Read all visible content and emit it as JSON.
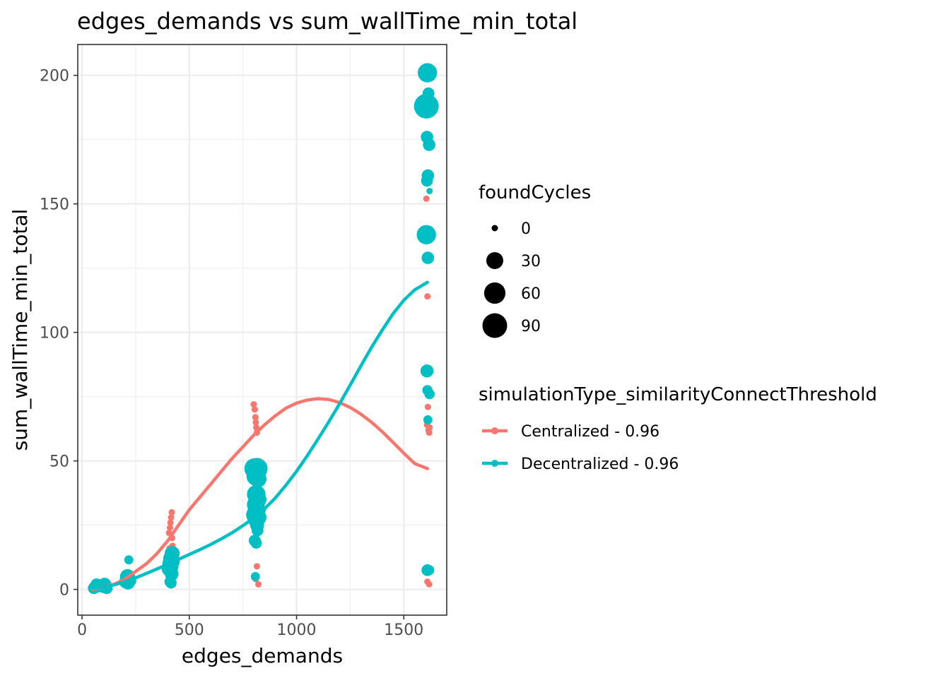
{
  "chart_data": {
    "type": "scatter",
    "title": "edges_demands  vs  sum_wallTime_min_total",
    "xlabel": "edges_demands",
    "ylabel": "sum_wallTime_min_total",
    "xlim": [
      -20,
      1700
    ],
    "ylim": [
      -10,
      212
    ],
    "xticks": [
      0,
      500,
      1000,
      1500
    ],
    "yticks": [
      0,
      50,
      100,
      150,
      200
    ],
    "grid": true,
    "size_legend": {
      "title": "foundCycles",
      "entries": [
        {
          "label": "0",
          "value": 0
        },
        {
          "label": "30",
          "value": 30
        },
        {
          "label": "60",
          "value": 60
        },
        {
          "label": "90",
          "value": 90
        }
      ]
    },
    "color_legend": {
      "title": "simulationType_similarityConnectThreshold",
      "position": "right"
    },
    "series": [
      {
        "name": "Centralized - 0.96",
        "color": "#F8766D",
        "points": [
          {
            "x": 55,
            "y": 0.5,
            "c": 0
          },
          {
            "x": 60,
            "y": 1,
            "c": 0
          },
          {
            "x": 70,
            "y": 1.5,
            "c": 0
          },
          {
            "x": 105,
            "y": 1,
            "c": 0
          },
          {
            "x": 110,
            "y": 1.5,
            "c": 0
          },
          {
            "x": 205,
            "y": 3,
            "c": 0
          },
          {
            "x": 210,
            "y": 4,
            "c": 0
          },
          {
            "x": 215,
            "y": 5,
            "c": 0
          },
          {
            "x": 220,
            "y": 6,
            "c": 0
          },
          {
            "x": 405,
            "y": 22,
            "c": 0
          },
          {
            "x": 410,
            "y": 24,
            "c": 0
          },
          {
            "x": 412,
            "y": 26,
            "c": 0
          },
          {
            "x": 415,
            "y": 28,
            "c": 0
          },
          {
            "x": 418,
            "y": 30,
            "c": 0
          },
          {
            "x": 420,
            "y": 20,
            "c": 0
          },
          {
            "x": 422,
            "y": 17,
            "c": 0
          },
          {
            "x": 425,
            "y": 15,
            "c": 0
          },
          {
            "x": 408,
            "y": 16,
            "c": 0
          },
          {
            "x": 416,
            "y": 13,
            "c": 0
          },
          {
            "x": 414,
            "y": 11,
            "c": 0
          },
          {
            "x": 800,
            "y": 72,
            "c": 0
          },
          {
            "x": 805,
            "y": 70,
            "c": 0
          },
          {
            "x": 810,
            "y": 65,
            "c": 0
          },
          {
            "x": 812,
            "y": 63,
            "c": 0
          },
          {
            "x": 815,
            "y": 61,
            "c": 0
          },
          {
            "x": 808,
            "y": 67,
            "c": 0
          },
          {
            "x": 815,
            "y": 9,
            "c": 0
          },
          {
            "x": 810,
            "y": 4,
            "c": 0
          },
          {
            "x": 822,
            "y": 2,
            "c": 0
          },
          {
            "x": 1605,
            "y": 152,
            "c": 0
          },
          {
            "x": 1610,
            "y": 114,
            "c": 0
          },
          {
            "x": 1612,
            "y": 71,
            "c": 0
          },
          {
            "x": 1608,
            "y": 64,
            "c": 0
          },
          {
            "x": 1615,
            "y": 62,
            "c": 0
          },
          {
            "x": 1618,
            "y": 61,
            "c": 0
          },
          {
            "x": 1620,
            "y": 63,
            "c": 0
          },
          {
            "x": 1610,
            "y": 3,
            "c": 0
          },
          {
            "x": 1618,
            "y": 2,
            "c": 0
          }
        ],
        "smooth": [
          [
            50,
            0
          ],
          [
            100,
            1
          ],
          [
            150,
            2
          ],
          [
            200,
            4
          ],
          [
            250,
            7
          ],
          [
            300,
            10
          ],
          [
            350,
            14
          ],
          [
            400,
            19
          ],
          [
            450,
            25
          ],
          [
            500,
            31
          ],
          [
            550,
            36
          ],
          [
            600,
            41
          ],
          [
            650,
            46
          ],
          [
            700,
            51
          ],
          [
            750,
            55.5
          ],
          [
            800,
            60
          ],
          [
            850,
            64
          ],
          [
            900,
            67.5
          ],
          [
            950,
            70.5
          ],
          [
            1000,
            72.5
          ],
          [
            1050,
            73.7
          ],
          [
            1100,
            74.2
          ],
          [
            1150,
            73.9
          ],
          [
            1200,
            72.7
          ],
          [
            1250,
            70.8
          ],
          [
            1300,
            68.2
          ],
          [
            1350,
            65
          ],
          [
            1400,
            61.3
          ],
          [
            1450,
            57.2
          ],
          [
            1500,
            53
          ],
          [
            1550,
            49
          ],
          [
            1610,
            47
          ]
        ]
      },
      {
        "name": "Decentralized - 0.96",
        "color": "#00BFC4",
        "points": [
          {
            "x": 55,
            "y": 0.5,
            "c": 8
          },
          {
            "x": 62,
            "y": 1,
            "c": 10
          },
          {
            "x": 68,
            "y": 2,
            "c": 8
          },
          {
            "x": 72,
            "y": 1,
            "c": 6
          },
          {
            "x": 100,
            "y": 1,
            "c": 10
          },
          {
            "x": 105,
            "y": 2,
            "c": 12
          },
          {
            "x": 110,
            "y": 1,
            "c": 14
          },
          {
            "x": 115,
            "y": 0.5,
            "c": 8
          },
          {
            "x": 205,
            "y": 3,
            "c": 14
          },
          {
            "x": 210,
            "y": 4,
            "c": 18
          },
          {
            "x": 215,
            "y": 2.5,
            "c": 12
          },
          {
            "x": 220,
            "y": 3.5,
            "c": 16
          },
          {
            "x": 218,
            "y": 11.5,
            "c": 2
          },
          {
            "x": 212,
            "y": 5,
            "c": 20
          },
          {
            "x": 405,
            "y": 8,
            "c": 18
          },
          {
            "x": 410,
            "y": 10,
            "c": 22
          },
          {
            "x": 415,
            "y": 12,
            "c": 24
          },
          {
            "x": 420,
            "y": 14,
            "c": 20
          },
          {
            "x": 412,
            "y": 9,
            "c": 26
          },
          {
            "x": 418,
            "y": 6,
            "c": 14
          },
          {
            "x": 410,
            "y": 3,
            "c": 6
          },
          {
            "x": 415,
            "y": 2.5,
            "c": 6
          },
          {
            "x": 422,
            "y": 11,
            "c": 18
          },
          {
            "x": 805,
            "y": 47,
            "c": 55
          },
          {
            "x": 815,
            "y": 47,
            "c": 60
          },
          {
            "x": 810,
            "y": 44,
            "c": 40
          },
          {
            "x": 820,
            "y": 43,
            "c": 30
          },
          {
            "x": 812,
            "y": 37,
            "c": 40
          },
          {
            "x": 818,
            "y": 35,
            "c": 35
          },
          {
            "x": 808,
            "y": 33,
            "c": 30
          },
          {
            "x": 815,
            "y": 31,
            "c": 35
          },
          {
            "x": 810,
            "y": 29,
            "c": 45
          },
          {
            "x": 820,
            "y": 28,
            "c": 30
          },
          {
            "x": 812,
            "y": 27,
            "c": 25
          },
          {
            "x": 816,
            "y": 25,
            "c": 15
          },
          {
            "x": 818,
            "y": 23,
            "c": 8
          },
          {
            "x": 805,
            "y": 19,
            "c": 8
          },
          {
            "x": 812,
            "y": 18,
            "c": 6
          },
          {
            "x": 808,
            "y": 5,
            "c": 2
          },
          {
            "x": 1610,
            "y": 201,
            "c": 45
          },
          {
            "x": 1615,
            "y": 193,
            "c": 8
          },
          {
            "x": 1605,
            "y": 188,
            "c": 90
          },
          {
            "x": 1608,
            "y": 176,
            "c": 10
          },
          {
            "x": 1618,
            "y": 173,
            "c": 10
          },
          {
            "x": 1612,
            "y": 161,
            "c": 10
          },
          {
            "x": 1608,
            "y": 159,
            "c": 8
          },
          {
            "x": 1620,
            "y": 155,
            "c": 0
          },
          {
            "x": 1605,
            "y": 138,
            "c": 45
          },
          {
            "x": 1612,
            "y": 129,
            "c": 10
          },
          {
            "x": 1608,
            "y": 85,
            "c": 12
          },
          {
            "x": 1610,
            "y": 77.5,
            "c": 4
          },
          {
            "x": 1620,
            "y": 76,
            "c": 4
          },
          {
            "x": 1612,
            "y": 66,
            "c": 2
          },
          {
            "x": 1610,
            "y": 7.5,
            "c": 8
          },
          {
            "x": 1618,
            "y": 7.5,
            "c": 4
          }
        ],
        "smooth": [
          [
            50,
            0.5
          ],
          [
            100,
            1
          ],
          [
            150,
            1.8
          ],
          [
            200,
            3
          ],
          [
            250,
            4.5
          ],
          [
            300,
            6.2
          ],
          [
            350,
            8
          ],
          [
            400,
            9.8
          ],
          [
            450,
            11.7
          ],
          [
            500,
            13.6
          ],
          [
            550,
            15.5
          ],
          [
            600,
            17.5
          ],
          [
            650,
            19.7
          ],
          [
            700,
            22.1
          ],
          [
            750,
            24.8
          ],
          [
            800,
            27.8
          ],
          [
            850,
            31.3
          ],
          [
            900,
            35.5
          ],
          [
            950,
            40.5
          ],
          [
            1000,
            46
          ],
          [
            1050,
            52
          ],
          [
            1100,
            58.5
          ],
          [
            1150,
            65.2
          ],
          [
            1200,
            72.2
          ],
          [
            1250,
            79.5
          ],
          [
            1300,
            87
          ],
          [
            1350,
            94.3
          ],
          [
            1400,
            101
          ],
          [
            1450,
            107.3
          ],
          [
            1500,
            112.5
          ],
          [
            1550,
            116.5
          ],
          [
            1610,
            119.5
          ]
        ]
      }
    ]
  }
}
